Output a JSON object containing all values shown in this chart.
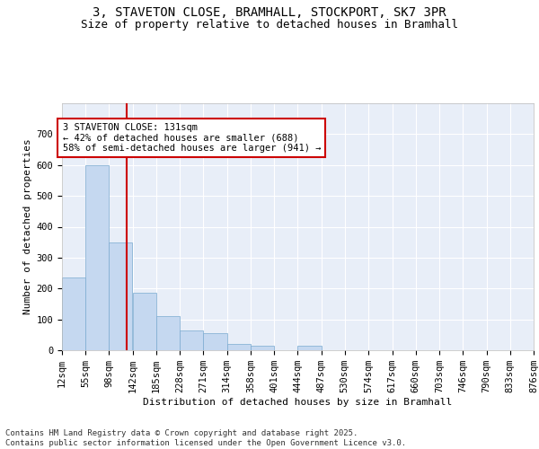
{
  "title_line1": "3, STAVETON CLOSE, BRAMHALL, STOCKPORT, SK7 3PR",
  "title_line2": "Size of property relative to detached houses in Bramhall",
  "xlabel": "Distribution of detached houses by size in Bramhall",
  "ylabel": "Number of detached properties",
  "bar_color": "#c5d8f0",
  "bar_edge_color": "#7aaad0",
  "background_color": "#e8eef8",
  "grid_color": "#ffffff",
  "vline_x": 131,
  "vline_color": "#cc0000",
  "annotation_text": "3 STAVETON CLOSE: 131sqm\n← 42% of detached houses are smaller (688)\n58% of semi-detached houses are larger (941) →",
  "annotation_box_color": "#ffffff",
  "annotation_box_edge": "#cc0000",
  "bin_edges": [
    12,
    55,
    98,
    142,
    185,
    228,
    271,
    314,
    358,
    401,
    444,
    487,
    530,
    574,
    617,
    660,
    703,
    746,
    790,
    833,
    876
  ],
  "bin_labels": [
    "12sqm",
    "55sqm",
    "98sqm",
    "142sqm",
    "185sqm",
    "228sqm",
    "271sqm",
    "314sqm",
    "358sqm",
    "401sqm",
    "444sqm",
    "487sqm",
    "530sqm",
    "574sqm",
    "617sqm",
    "660sqm",
    "703sqm",
    "746sqm",
    "790sqm",
    "833sqm",
    "876sqm"
  ],
  "bar_heights": [
    235,
    600,
    350,
    185,
    112,
    65,
    55,
    20,
    15,
    0,
    15,
    0,
    0,
    0,
    0,
    0,
    0,
    0,
    0,
    0
  ],
  "ylim": [
    0,
    800
  ],
  "yticks": [
    0,
    100,
    200,
    300,
    400,
    500,
    600,
    700
  ],
  "footer_text": "Contains HM Land Registry data © Crown copyright and database right 2025.\nContains public sector information licensed under the Open Government Licence v3.0.",
  "title_fontsize": 10,
  "subtitle_fontsize": 9,
  "label_fontsize": 8,
  "tick_fontsize": 7.5,
  "footer_fontsize": 6.5,
  "annot_fontsize": 7.5
}
